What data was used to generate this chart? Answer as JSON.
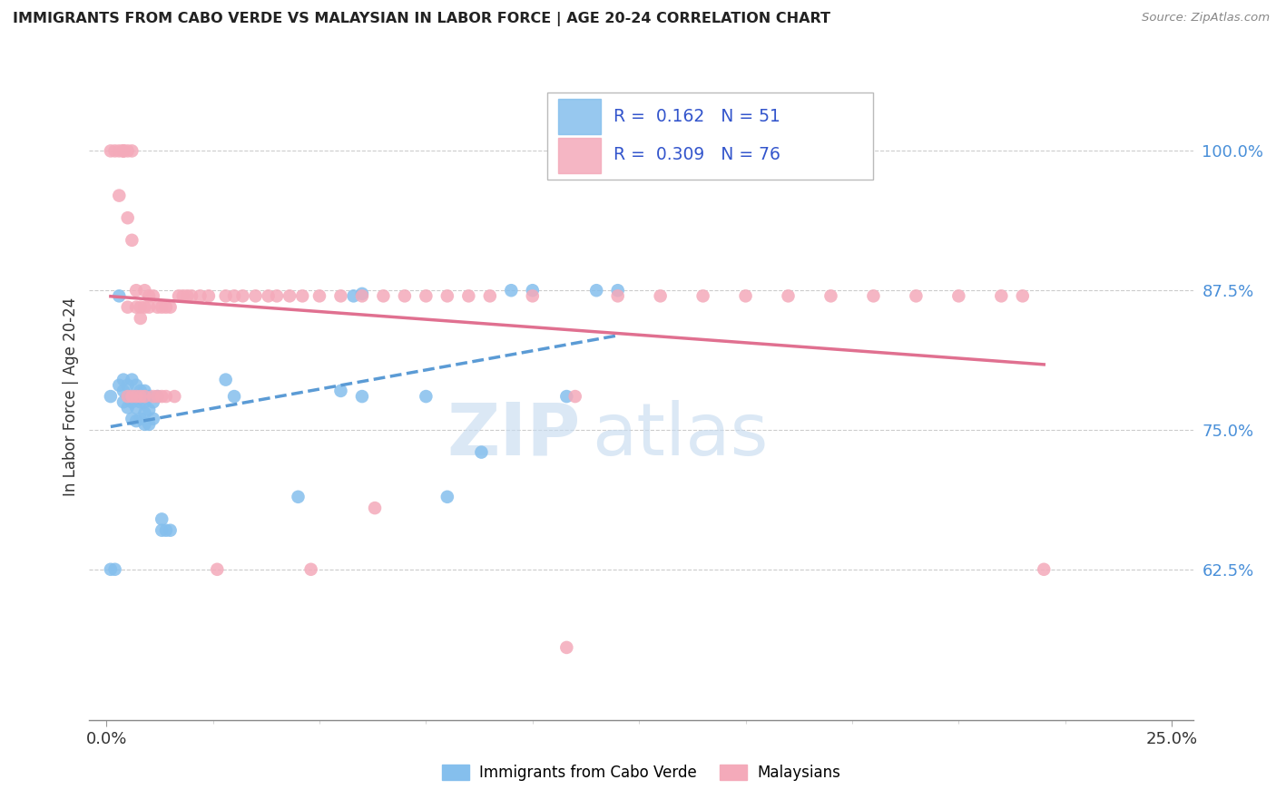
{
  "title": "IMMIGRANTS FROM CABO VERDE VS MALAYSIAN IN LABOR FORCE | AGE 20-24 CORRELATION CHART",
  "source": "Source: ZipAtlas.com",
  "ylabel": "In Labor Force | Age 20-24",
  "x_left_label": "0.0%",
  "x_right_label": "25.0%",
  "y_ticks": [
    0.625,
    0.75,
    0.875,
    1.0
  ],
  "y_tick_labels": [
    "62.5%",
    "75.0%",
    "87.5%",
    "100.0%"
  ],
  "cabo_verde_R": "0.162",
  "cabo_verde_N": "51",
  "malaysian_R": "0.309",
  "malaysian_N": "76",
  "cabo_verde_dot_color": "#85BFED",
  "malaysian_dot_color": "#F4AABA",
  "cabo_verde_line_color": "#5B9BD5",
  "malaysian_line_color": "#E07090",
  "legend_value_color": "#3355CC",
  "watermark_zip_color": "#C8DCF0",
  "watermark_atlas_color": "#C8DCF0",
  "cabo_verde_x": [
    0.001,
    0.002,
    0.003,
    0.003,
    0.004,
    0.004,
    0.004,
    0.005,
    0.005,
    0.005,
    0.006,
    0.006,
    0.006,
    0.006,
    0.007,
    0.007,
    0.007,
    0.007,
    0.008,
    0.008,
    0.008,
    0.009,
    0.009,
    0.009,
    0.009,
    0.01,
    0.01,
    0.01,
    0.011,
    0.011,
    0.012,
    0.013,
    0.013,
    0.014,
    0.015,
    0.028,
    0.03,
    0.045,
    0.055,
    0.058,
    0.06,
    0.06,
    0.075,
    0.08,
    0.088,
    0.095,
    0.1,
    0.108,
    0.115,
    0.12,
    0.001
  ],
  "cabo_verde_y": [
    0.625,
    0.625,
    0.79,
    0.87,
    0.775,
    0.785,
    0.795,
    0.77,
    0.78,
    0.79,
    0.76,
    0.775,
    0.78,
    0.795,
    0.758,
    0.77,
    0.78,
    0.79,
    0.76,
    0.775,
    0.785,
    0.755,
    0.765,
    0.775,
    0.785,
    0.755,
    0.768,
    0.78,
    0.76,
    0.775,
    0.78,
    0.66,
    0.67,
    0.66,
    0.66,
    0.795,
    0.78,
    0.69,
    0.785,
    0.87,
    0.872,
    0.78,
    0.78,
    0.69,
    0.73,
    0.875,
    0.875,
    0.78,
    0.875,
    0.875,
    0.78
  ],
  "malaysian_x": [
    0.001,
    0.002,
    0.003,
    0.003,
    0.004,
    0.004,
    0.004,
    0.005,
    0.005,
    0.005,
    0.005,
    0.006,
    0.006,
    0.006,
    0.007,
    0.007,
    0.007,
    0.008,
    0.008,
    0.008,
    0.009,
    0.009,
    0.009,
    0.01,
    0.01,
    0.011,
    0.011,
    0.012,
    0.012,
    0.013,
    0.013,
    0.014,
    0.014,
    0.015,
    0.016,
    0.017,
    0.018,
    0.019,
    0.02,
    0.022,
    0.024,
    0.026,
    0.028,
    0.03,
    0.032,
    0.035,
    0.038,
    0.04,
    0.043,
    0.046,
    0.05,
    0.055,
    0.06,
    0.065,
    0.07,
    0.075,
    0.08,
    0.085,
    0.09,
    0.1,
    0.11,
    0.12,
    0.13,
    0.14,
    0.15,
    0.16,
    0.17,
    0.18,
    0.19,
    0.2,
    0.21,
    0.215,
    0.22,
    0.048,
    0.063,
    0.108
  ],
  "malaysian_y": [
    1.0,
    1.0,
    0.96,
    1.0,
    1.0,
    1.0,
    1.0,
    1.0,
    0.94,
    0.86,
    0.78,
    1.0,
    0.92,
    0.78,
    0.875,
    0.86,
    0.78,
    0.86,
    0.85,
    0.78,
    0.875,
    0.86,
    0.78,
    0.87,
    0.86,
    0.87,
    0.78,
    0.86,
    0.78,
    0.86,
    0.78,
    0.86,
    0.78,
    0.86,
    0.78,
    0.87,
    0.87,
    0.87,
    0.87,
    0.87,
    0.87,
    0.625,
    0.87,
    0.87,
    0.87,
    0.87,
    0.87,
    0.87,
    0.87,
    0.87,
    0.87,
    0.87,
    0.87,
    0.87,
    0.87,
    0.87,
    0.87,
    0.87,
    0.87,
    0.87,
    0.78,
    0.87,
    0.87,
    0.87,
    0.87,
    0.87,
    0.87,
    0.87,
    0.87,
    0.87,
    0.87,
    0.87,
    0.625,
    0.625,
    0.68,
    0.555
  ],
  "xlim": [
    -0.004,
    0.255
  ],
  "ylim": [
    0.49,
    1.07
  ]
}
